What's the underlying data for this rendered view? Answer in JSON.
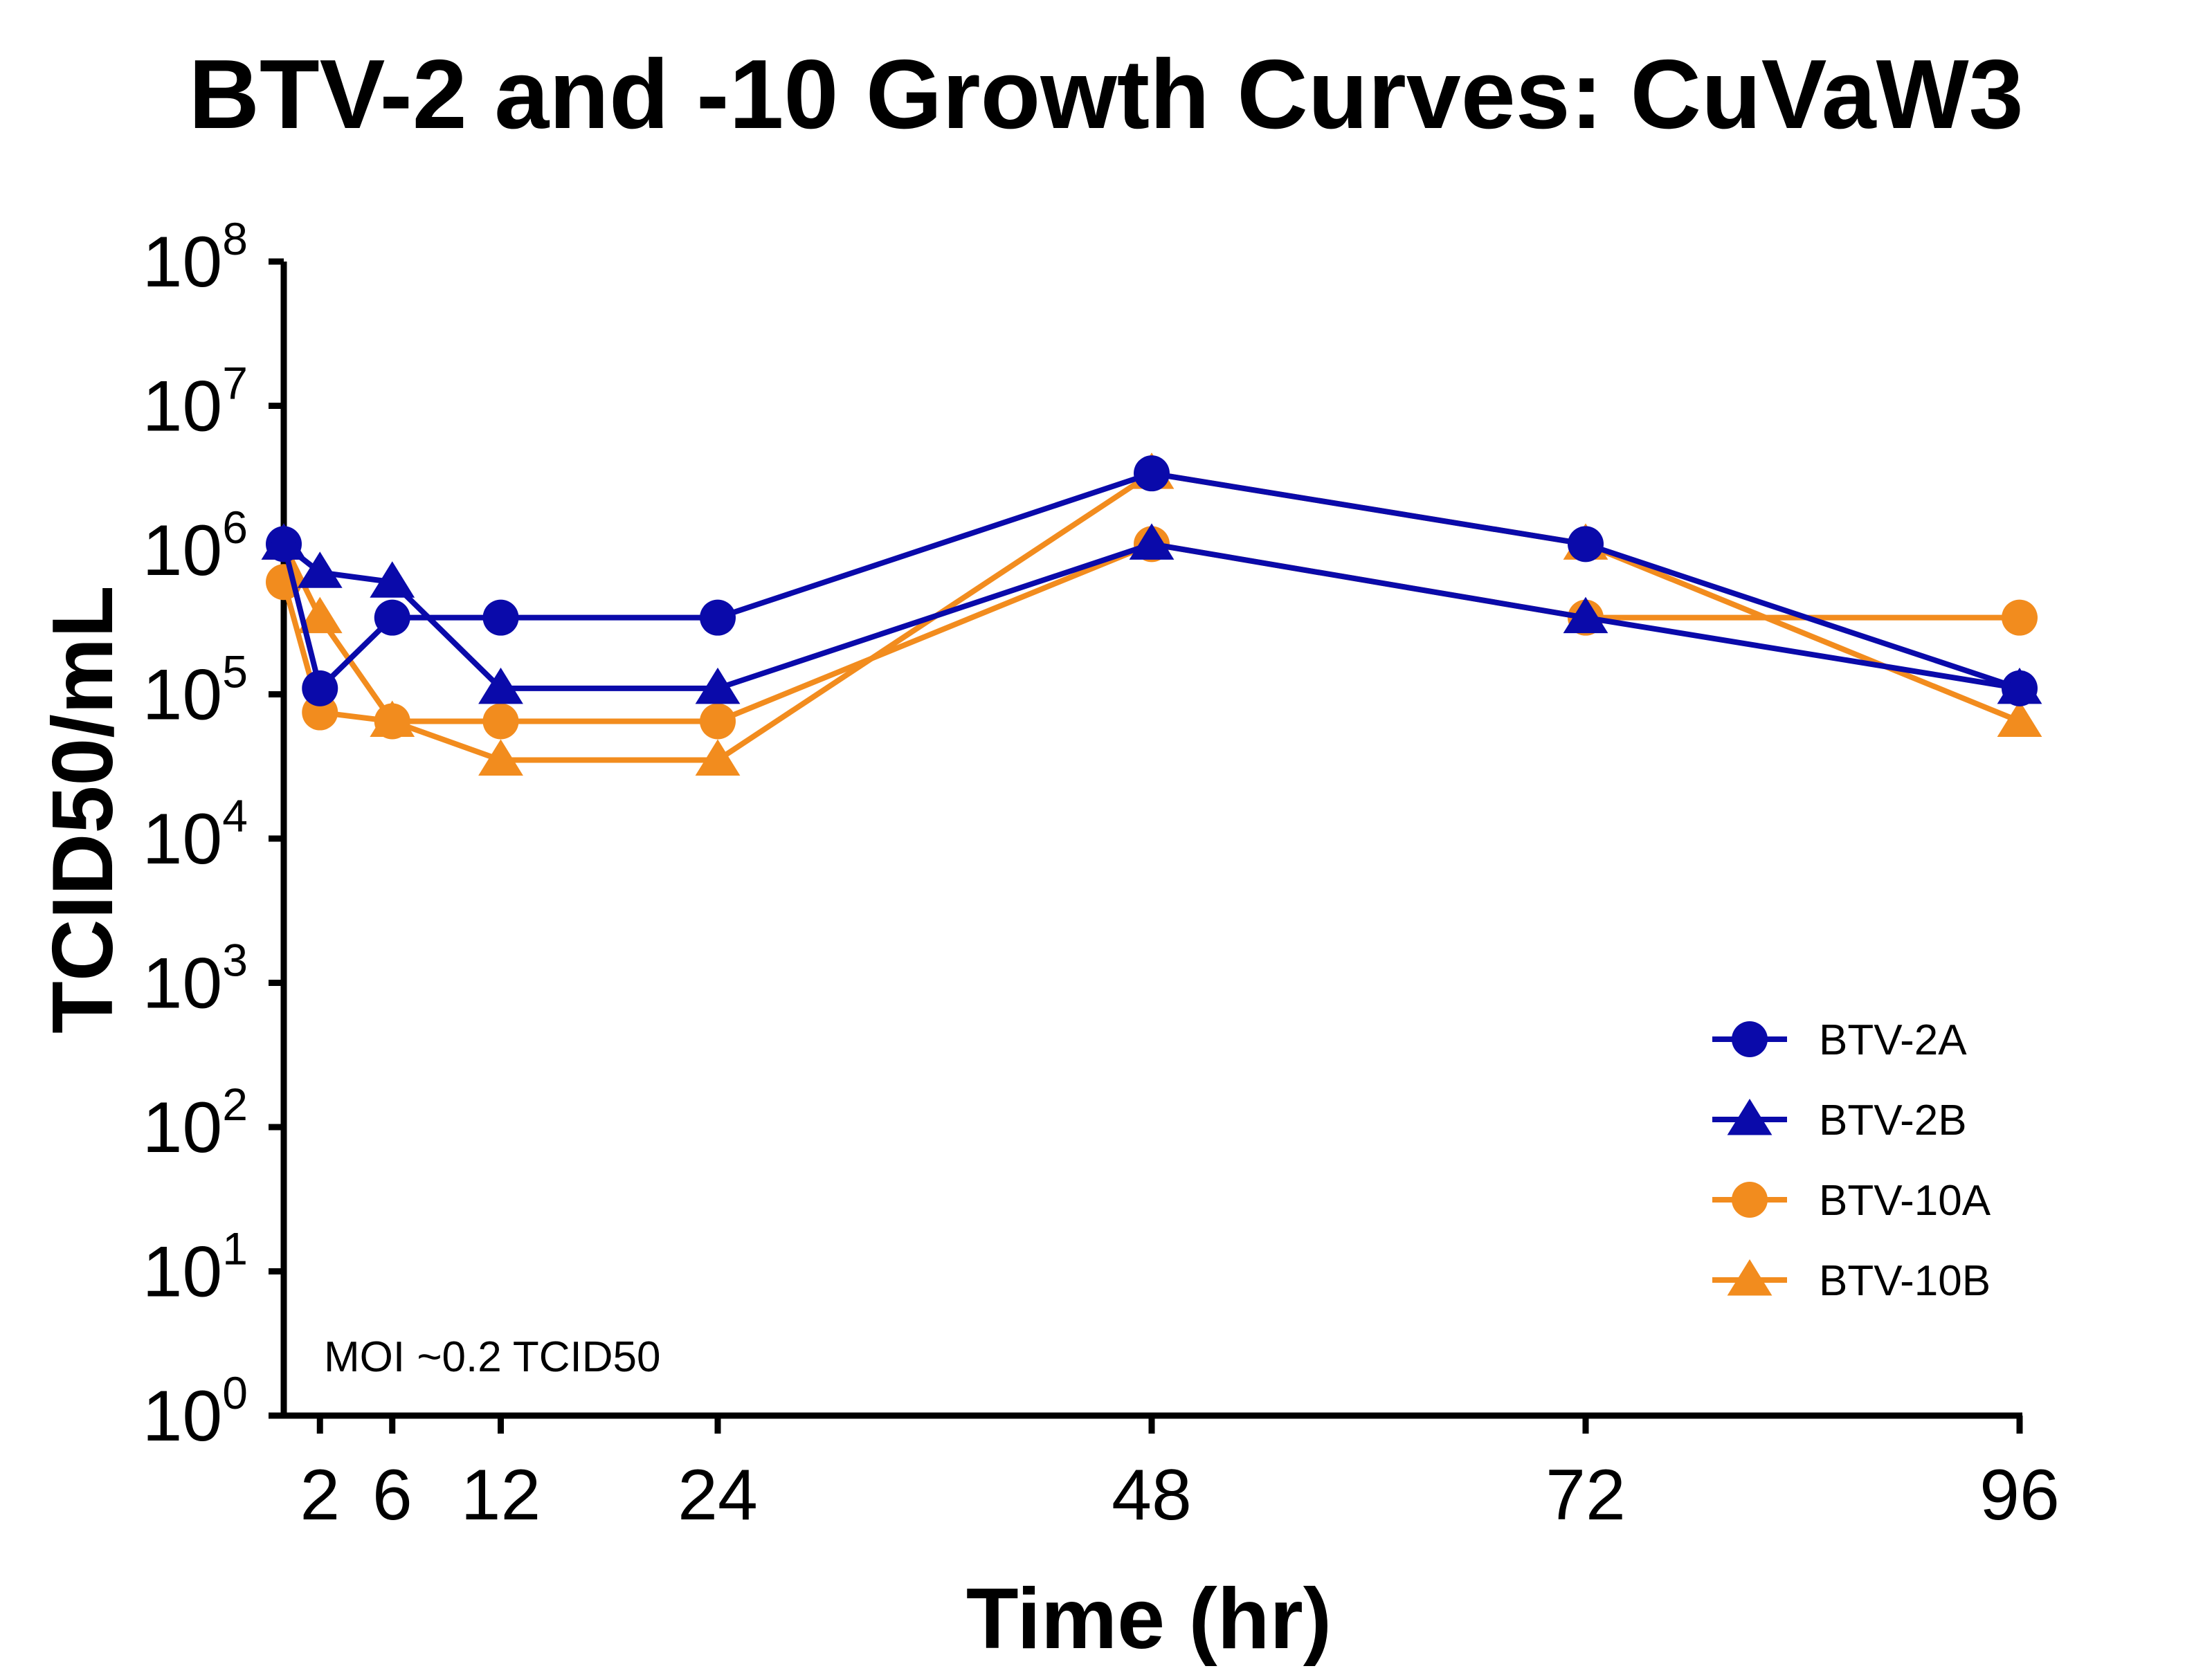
{
  "chart_data": {
    "type": "line",
    "title": "BTV-2 and -10 Growth Curves: CuVaW3",
    "xlabel": "Time (hr)",
    "ylabel": "TCID50/mL",
    "yscale": "log10",
    "ylim": [
      1,
      100000000
    ],
    "xlim": [
      0,
      96
    ],
    "x_ticks": [
      {
        "value": 2,
        "label": "2"
      },
      {
        "value": 6,
        "label": "6"
      },
      {
        "value": 12,
        "label": "12"
      },
      {
        "value": 24,
        "label": "24"
      },
      {
        "value": 48,
        "label": "48"
      },
      {
        "value": 72,
        "label": "72"
      },
      {
        "value": 96,
        "label": "96"
      }
    ],
    "y_ticks": [
      {
        "exponent": 0,
        "base": "10",
        "sup": "0"
      },
      {
        "exponent": 1,
        "base": "10",
        "sup": "1"
      },
      {
        "exponent": 2,
        "base": "10",
        "sup": "2"
      },
      {
        "exponent": 3,
        "base": "10",
        "sup": "3"
      },
      {
        "exponent": 4,
        "base": "10",
        "sup": "4"
      },
      {
        "exponent": 5,
        "base": "10",
        "sup": "5"
      },
      {
        "exponent": 6,
        "base": "10",
        "sup": "6"
      },
      {
        "exponent": 7,
        "base": "10",
        "sup": "7"
      },
      {
        "exponent": 8,
        "base": "10",
        "sup": "8"
      }
    ],
    "annotation": "MOI ~0.2 TCID50",
    "legend_position": "bottom-right",
    "series": [
      {
        "name": "BTV-2A",
        "marker": "circle",
        "color": "#0a0aaa",
        "x": [
          0,
          2,
          6,
          12,
          24,
          48,
          72,
          96
        ],
        "y": [
          1100000,
          110000,
          340000,
          340000,
          340000,
          3400000,
          1100000,
          110000
        ]
      },
      {
        "name": "BTV-2B",
        "marker": "triangle",
        "color": "#0a0aaa",
        "x": [
          0,
          2,
          6,
          12,
          24,
          48,
          72,
          96
        ],
        "y": [
          1100000,
          700000,
          600000,
          110000,
          110000,
          1100000,
          340000,
          110000
        ]
      },
      {
        "name": "BTV-10A",
        "marker": "circle",
        "color": "#f28c1e",
        "x": [
          0,
          2,
          6,
          12,
          24,
          48,
          72,
          96
        ],
        "y": [
          600000,
          75000,
          65000,
          65000,
          65000,
          1100000,
          340000,
          340000
        ]
      },
      {
        "name": "BTV-10B",
        "marker": "triangle",
        "color": "#f28c1e",
        "x": [
          0,
          2,
          6,
          12,
          24,
          48,
          72,
          96
        ],
        "y": [
          1100000,
          340000,
          65000,
          35000,
          35000,
          3400000,
          1100000,
          65000
        ]
      }
    ]
  }
}
